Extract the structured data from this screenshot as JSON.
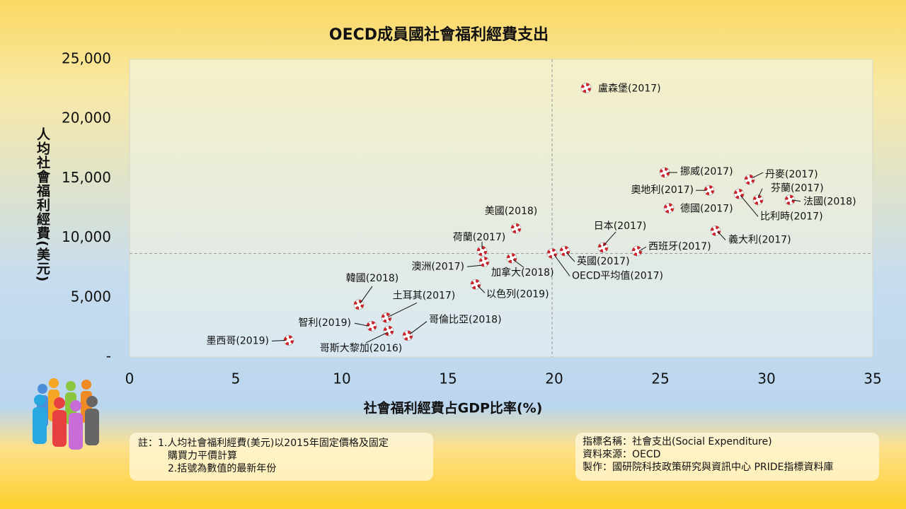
{
  "chart_data": {
    "type": "scatter",
    "title": "OECD成員國社會福利經費支出",
    "x_label": "社會福利經費占GDP比率(%)",
    "y_label": "人均社會福利經費(美元)",
    "point_labels": [
      "盧森堡(2017)",
      "挪威(2017)",
      "丹麥(2017)",
      "奧地利(2017)",
      "芬蘭(2017)",
      "比利時(2017)",
      "法國(2018)",
      "德國(2017)",
      "美國(2018)",
      "義大利(2017)",
      "日本(2017)",
      "西班牙(2017)",
      "OECD平均值(2017)",
      "英國(2017)",
      "荷蘭(2017)",
      "澳洲(2017)",
      "加拿大(2018)",
      "以色列(2019)",
      "韓國(2018)",
      "土耳其(2017)",
      "智利(2019)",
      "哥斯大黎加(2016)",
      "哥倫比亞(2018)",
      "墨西哥(2019)"
    ],
    "x": [
      21.5,
      25.2,
      29.2,
      27.3,
      29.6,
      28.7,
      31.1,
      25.4,
      18.2,
      27.6,
      22.3,
      23.9,
      19.9,
      20.5,
      16.6,
      16.7,
      18.0,
      16.3,
      10.8,
      12.1,
      11.4,
      12.2,
      13.1,
      7.5
    ],
    "values": [
      22600,
      15500,
      14900,
      14000,
      13200,
      13700,
      13200,
      12500,
      10800,
      10600,
      9200,
      8900,
      8700,
      8900,
      8900,
      8000,
      8300,
      6100,
      4400,
      3300,
      2600,
      2200,
      1800,
      1400
    ],
    "xlim": [
      0,
      35
    ],
    "xticks": [
      0,
      5,
      10,
      15,
      20,
      25,
      30,
      35
    ],
    "ylim": [
      0,
      25000
    ],
    "yticks": [
      {
        "value": 0,
        "label": "-"
      },
      {
        "value": 5000,
        "label": "5,000"
      },
      {
        "value": 10000,
        "label": "10,000"
      },
      {
        "value": 15000,
        "label": "15,000"
      },
      {
        "value": 20000,
        "label": "20,000"
      },
      {
        "value": 25000,
        "label": "25,000"
      }
    ],
    "marker_color": "#c8262c"
  },
  "notes": [
    "註：1.人均社會福利經費(美元)以2015年固定價格及固定",
    "購買力平價計算",
    "2.括號為數值的最新年份"
  ],
  "info": [
    "指標名稱：社會支出(Social Expenditure)",
    "資料來源：OECD",
    "製作：國研院科技政策研究與資訊中心 PRIDE指標資料庫"
  ]
}
